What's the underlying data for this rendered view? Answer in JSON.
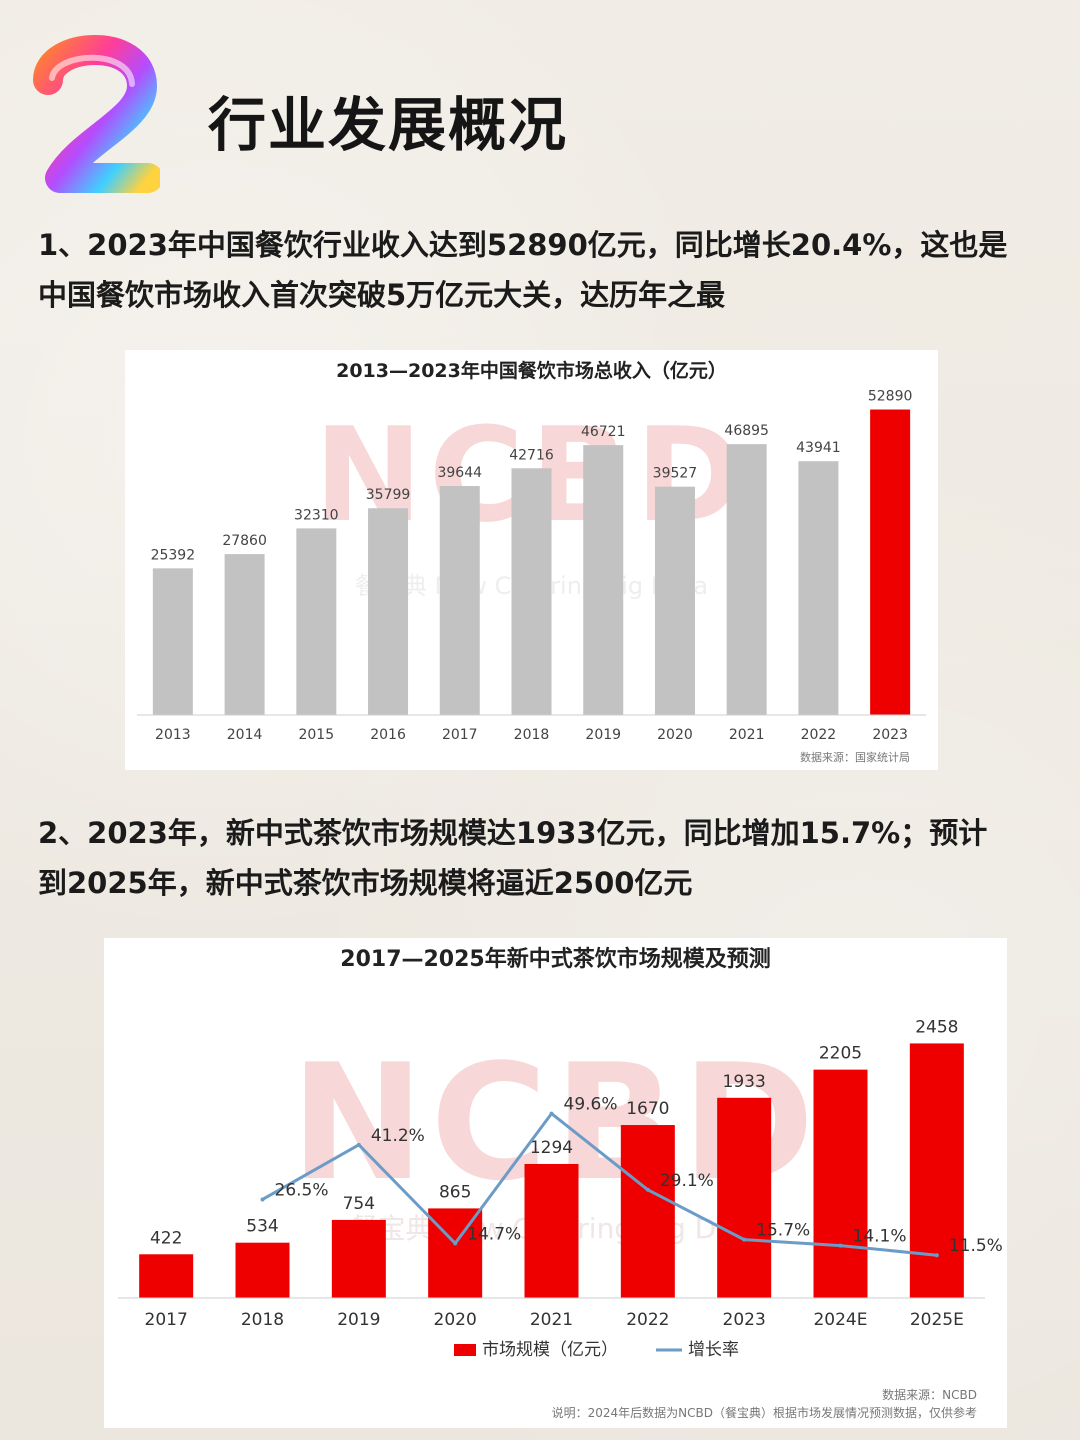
{
  "header": {
    "number_badge": "2",
    "title": "行业发展概况"
  },
  "paragraphs": {
    "p1_line1": "1、2023年中国餐饮行业收入达到52890亿元，同比增长20.4%，这也是",
    "p1_line2": "中国餐饮市场收入首次突破5万亿元大关，达历年之最",
    "p2_line1": "2、2023年，新中式茶饮市场规模达1933亿元，同比增加15.7%；预计",
    "p2_line2": "到2025年，新中式茶饮市场规模将逼近2500亿元"
  },
  "colors": {
    "bar_gray": "#c2c2c2",
    "bar_red": "#ee0000",
    "line_blue": "#6b9bc7",
    "watermark": "#f7d7d7"
  },
  "chart_data": [
    {
      "type": "bar",
      "title": "2013—2023年中国餐饮市场总收入（亿元）",
      "categories": [
        "2013",
        "2014",
        "2015",
        "2016",
        "2017",
        "2018",
        "2019",
        "2020",
        "2021",
        "2022",
        "2023"
      ],
      "values": [
        25392,
        27860,
        32310,
        35799,
        39644,
        42716,
        46721,
        39527,
        46895,
        43941,
        52890
      ],
      "highlight_index": 10,
      "ylim": [
        0,
        58000
      ],
      "grid": false,
      "source": "数据来源：国家统计局",
      "watermark": [
        "NCBD",
        "餐宝典 New Catering Big Data"
      ]
    },
    {
      "type": "bar",
      "title": "2017—2025年新中式茶饮市场规模及预测",
      "categories": [
        "2017",
        "2018",
        "2019",
        "2020",
        "2021",
        "2022",
        "2023",
        "2024E",
        "2025E"
      ],
      "series": [
        {
          "name": "市场规模（亿元）",
          "type": "bar",
          "values": [
            422,
            534,
            754,
            865,
            1294,
            1670,
            1933,
            2205,
            2458
          ]
        },
        {
          "name": "增长率",
          "type": "line",
          "values": [
            null,
            26.5,
            41.2,
            14.7,
            49.6,
            29.1,
            15.7,
            14.1,
            11.5
          ],
          "labels": [
            "",
            "26.5%",
            "41.2%",
            "14.7%",
            "49.6%",
            "29.1%",
            "15.7%",
            "14.1%",
            "11.5%"
          ]
        }
      ],
      "ylim": [
        0,
        2800
      ],
      "y2lim": [
        0,
        78
      ],
      "grid": false,
      "legend": "bottom",
      "source": "数据来源：NCBD",
      "note": "说明：2024年后数据为NCBD（餐宝典）根据市场发展情况预测数据，仅供参考",
      "watermark": [
        "NCBD",
        "餐宝典 New Catering Big Data"
      ]
    }
  ]
}
